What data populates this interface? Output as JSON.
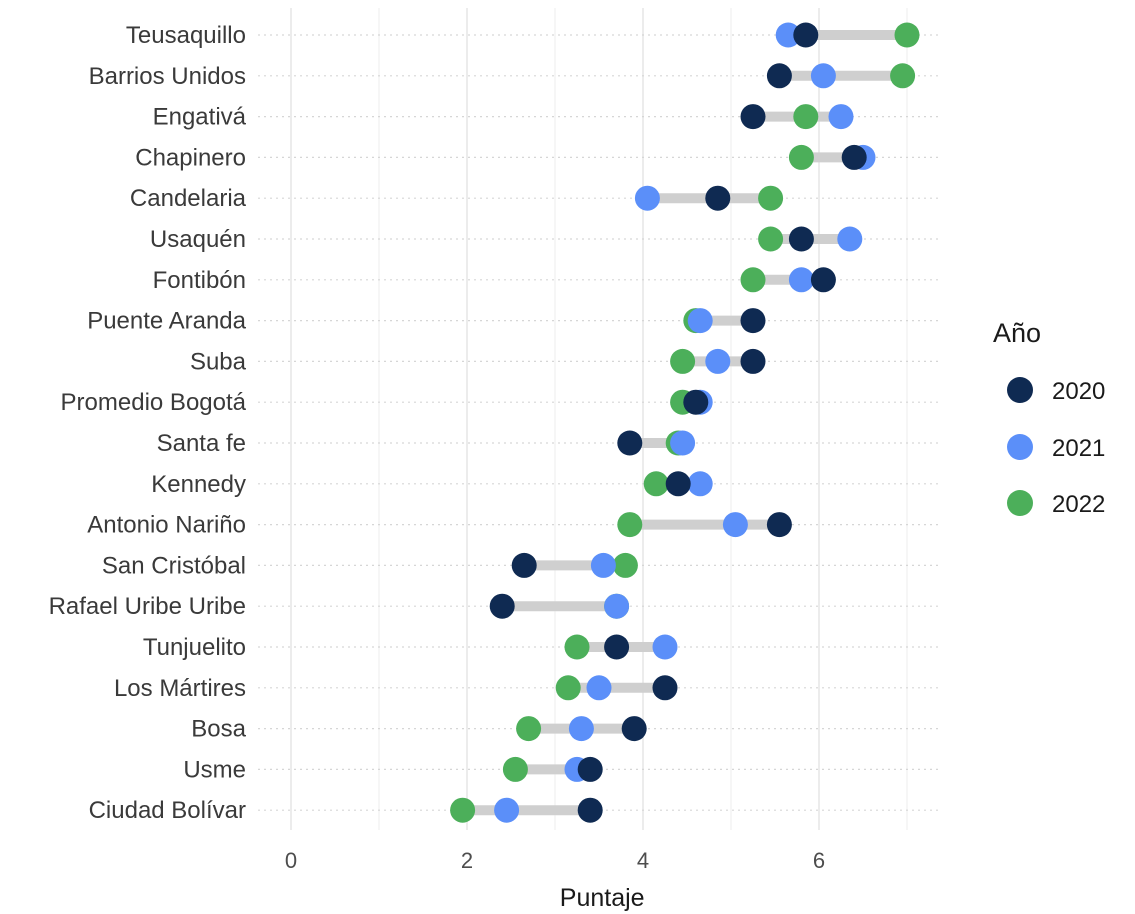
{
  "chart_data": {
    "type": "dumbbell",
    "xlabel": "Puntaje",
    "ylabel": "",
    "xlim": [
      0,
      7.3
    ],
    "x_ticks": [
      0,
      2,
      4,
      6
    ],
    "x_tick_labels": [
      "0",
      "2",
      "4",
      "6"
    ],
    "grid": true,
    "legend": {
      "title": "Año",
      "placement": "right",
      "entries": [
        "2020",
        "2021",
        "2022"
      ]
    },
    "series_colors": {
      "2020": "#0f2a52",
      "2021": "#5b8ff9",
      "2022": "#4caf5a"
    },
    "connector_color": "#cfcfcf",
    "categories": [
      "Teusaquillo",
      "Barrios Unidos",
      "Engativá",
      "Chapinero",
      "Candelaria",
      "Usaquén",
      "Fontibón",
      "Puente Aranda",
      "Suba",
      "Promedio Bogotá",
      "Santa fe",
      "Kennedy",
      "Antonio Nariño",
      "San Cristóbal",
      "Rafael Uribe Uribe",
      "Tunjuelito",
      "Los Mártires",
      "Bosa",
      "Usme",
      "Ciudad Bolívar"
    ],
    "series": [
      {
        "name": "2020",
        "values": [
          5.85,
          5.55,
          5.25,
          6.4,
          4.85,
          5.8,
          6.05,
          5.25,
          5.25,
          4.6,
          3.85,
          4.4,
          5.55,
          2.65,
          2.4,
          3.7,
          4.25,
          3.9,
          3.4,
          3.4
        ]
      },
      {
        "name": "2021",
        "values": [
          5.65,
          6.05,
          6.25,
          6.5,
          4.05,
          6.35,
          5.8,
          4.65,
          4.85,
          4.65,
          4.45,
          4.65,
          5.05,
          3.55,
          3.7,
          4.25,
          3.5,
          3.3,
          3.25,
          2.45
        ]
      },
      {
        "name": "2022",
        "values": [
          7.0,
          6.95,
          5.85,
          5.8,
          5.45,
          5.45,
          5.25,
          4.6,
          4.45,
          4.45,
          4.4,
          4.15,
          3.85,
          3.8,
          3.7,
          3.25,
          3.15,
          2.7,
          2.55,
          1.95
        ]
      }
    ]
  }
}
